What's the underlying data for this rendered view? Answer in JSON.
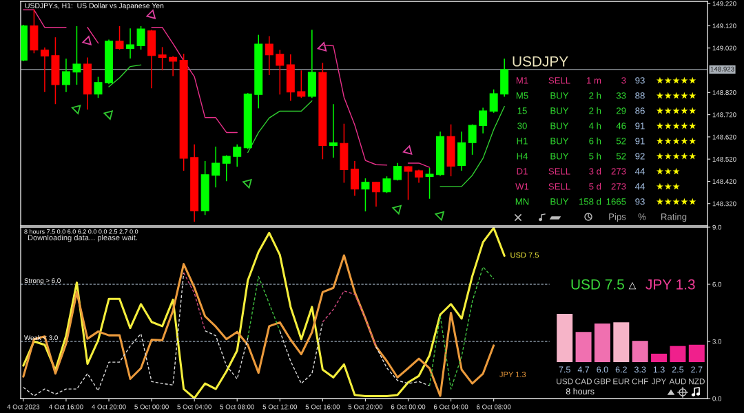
{
  "chart_data": [
    {
      "type": "candlestick",
      "title": "USDJPY.s, H1:  US Dollar vs Japanese Yen",
      "x": [
        "2023-10-04T12:00",
        "2023-10-04T13:00",
        "2023-10-04T14:00",
        "2023-10-04T15:00",
        "2023-10-04T16:00",
        "2023-10-04T17:00",
        "2023-10-04T18:00",
        "2023-10-04T19:00",
        "2023-10-04T20:00",
        "2023-10-04T21:00",
        "2023-10-04T22:00",
        "2023-10-04T23:00",
        "2023-10-05T00:00",
        "2023-10-05T01:00",
        "2023-10-05T02:00",
        "2023-10-05T03:00",
        "2023-10-05T04:00",
        "2023-10-05T05:00",
        "2023-10-05T06:00",
        "2023-10-05T07:00",
        "2023-10-05T08:00",
        "2023-10-05T09:00",
        "2023-10-05T10:00",
        "2023-10-05T11:00",
        "2023-10-05T12:00",
        "2023-10-05T13:00",
        "2023-10-05T14:00",
        "2023-10-05T15:00",
        "2023-10-05T16:00",
        "2023-10-05T17:00",
        "2023-10-05T18:00",
        "2023-10-05T19:00",
        "2023-10-05T20:00",
        "2023-10-05T21:00",
        "2023-10-05T22:00",
        "2023-10-05T23:00",
        "2023-10-06T00:00",
        "2023-10-06T01:00",
        "2023-10-06T02:00",
        "2023-10-06T03:00",
        "2023-10-06T04:00",
        "2023-10-06T05:00",
        "2023-10-06T06:00",
        "2023-10-06T07:00",
        "2023-10-06T08:00",
        "2023-10-06T09:00"
      ],
      "ohlc": [
        [
          148.965,
          149.122,
          148.963,
          149.12
        ],
        [
          149.12,
          149.192,
          148.999,
          149.011
        ],
        [
          149.011,
          149.02,
          148.824,
          148.984
        ],
        [
          148.986,
          149.066,
          148.77,
          148.855
        ],
        [
          148.855,
          148.97,
          148.824,
          148.914
        ],
        [
          148.912,
          149.116,
          148.857,
          148.948
        ],
        [
          148.948,
          148.975,
          148.745,
          148.813
        ],
        [
          148.813,
          148.888,
          148.798,
          148.865
        ],
        [
          148.863,
          149.056,
          148.86,
          149.051
        ],
        [
          149.051,
          149.116,
          149.015,
          149.018
        ],
        [
          149.018,
          149.106,
          148.975,
          149.035
        ],
        [
          149.03,
          149.116,
          149.015,
          149.106
        ],
        [
          149.097,
          149.1,
          148.841,
          148.986
        ],
        [
          148.989,
          149.022,
          148.922,
          148.978
        ],
        [
          148.978,
          148.981,
          148.896,
          148.961
        ],
        [
          148.965,
          148.992,
          148.47,
          148.524
        ],
        [
          148.527,
          148.584,
          148.24,
          148.287
        ],
        [
          148.287,
          148.509,
          148.271,
          148.45
        ],
        [
          148.447,
          148.574,
          148.395,
          148.502
        ],
        [
          148.501,
          148.535,
          148.423,
          148.533
        ],
        [
          148.532,
          148.584,
          148.488,
          148.574
        ],
        [
          148.571,
          148.815,
          148.568,
          148.813
        ],
        [
          148.811,
          149.077,
          148.751,
          149.038
        ],
        [
          149.038,
          149.071,
          148.901,
          148.989
        ],
        [
          148.992,
          149.009,
          148.813,
          148.942
        ],
        [
          148.945,
          148.989,
          148.785,
          148.822
        ],
        [
          148.824,
          148.917,
          148.798,
          148.803
        ],
        [
          148.803,
          149.1,
          148.798,
          148.911
        ],
        [
          148.91,
          148.951,
          148.522,
          148.581
        ],
        [
          148.581,
          148.765,
          148.529,
          148.594
        ],
        [
          148.591,
          148.677,
          148.416,
          148.473
        ],
        [
          148.475,
          148.509,
          148.357,
          148.385
        ],
        [
          148.385,
          148.431,
          148.287,
          148.416
        ],
        [
          148.416,
          148.416,
          148.308,
          148.373
        ],
        [
          148.373,
          148.44,
          148.37,
          148.431
        ],
        [
          148.428,
          148.5,
          148.426,
          148.488
        ],
        [
          148.486,
          148.486,
          148.339,
          148.465
        ],
        [
          148.468,
          148.47,
          148.416,
          148.439
        ],
        [
          148.442,
          148.478,
          148.344,
          148.452
        ],
        [
          148.45,
          148.641,
          148.447,
          148.622
        ],
        [
          148.622,
          148.674,
          148.445,
          148.488
        ],
        [
          148.491,
          148.641,
          148.47,
          148.594
        ],
        [
          148.594,
          148.674,
          148.542,
          148.672
        ],
        [
          148.671,
          148.749,
          148.638,
          148.737
        ],
        [
          148.735,
          148.831,
          148.731,
          148.815
        ],
        [
          148.813,
          148.97,
          148.803,
          148.923
        ]
      ],
      "colors": [
        "#00ff00",
        "#ff0000",
        "#ff0000",
        "#ff0000",
        "#00ff00",
        "#00ff00",
        "#ff0000",
        "#00ff00",
        "#00ff00",
        "#ff0000",
        "#00ff00",
        "#00ff00",
        "#ff0000",
        "#ff0000",
        "#ff0000",
        "#ff0000",
        "#ff0000",
        "#00ff00",
        "#00ff00",
        "#00ff00",
        "#00ff00",
        "#00ff00",
        "#00ff00",
        "#ff0000",
        "#ff0000",
        "#ff0000",
        "#ff0000",
        "#00ff00",
        "#ff0000",
        "#00ff00",
        "#ff0000",
        "#ff0000",
        "#00ff00",
        "#ff0000",
        "#00ff00",
        "#00ff00",
        "#ff0000",
        "#ff0000",
        "#00ff00",
        "#00ff00",
        "#ff0000",
        "#00ff00",
        "#00ff00",
        "#00ff00",
        "#00ff00",
        "#00ff00"
      ],
      "xlim": [
        "2023-10-04T11:45",
        "2023-10-07T04:00"
      ],
      "ylim": [
        148.22,
        149.23
      ],
      "yticks": [
        {
          "value": 149.22,
          "label": "149.220"
        },
        {
          "value": 149.12,
          "label": "149.120"
        },
        {
          "value": 149.02,
          "label": "149.020"
        },
        {
          "value": 148.82,
          "label": "148.820"
        },
        {
          "value": 148.72,
          "label": "148.720"
        },
        {
          "value": 148.62,
          "label": "148.620"
        },
        {
          "value": 148.52,
          "label": "148.520"
        },
        {
          "value": 148.42,
          "label": "148.420"
        },
        {
          "value": 148.32,
          "label": "148.320"
        }
      ],
      "tick_labels": "y",
      "ref_lines": [
        {
          "axis": "y",
          "value": 148.923,
          "label": "148.923",
          "color": "#a9b0b8"
        }
      ],
      "series": [
        {
          "type": "line",
          "color": "#e8308a",
          "values": [
            149.192,
            149.192,
            149.113,
            149.113,
            149.113,
            null,
            149.113,
            149.042,
            null,
            null,
            null,
            null,
            149.113,
            149.113,
            149.04,
            148.963,
            148.891,
            148.707,
            148.707,
            148.64,
            148.64,
            null,
            null,
            null,
            null,
            null,
            null,
            null,
            149.033,
            149.03,
            148.798,
            148.674,
            148.514,
            148.495,
            148.493,
            null,
            148.502,
            148.502,
            148.483,
            null,
            null,
            null,
            null,
            null,
            null,
            null
          ]
        },
        {
          "type": "line",
          "color": "#30d030",
          "values": [
            null,
            null,
            null,
            null,
            null,
            null,
            null,
            null,
            148.846,
            148.886,
            148.937,
            148.944,
            null,
            null,
            null,
            null,
            null,
            null,
            null,
            null,
            null,
            148.55,
            148.64,
            148.705,
            148.736,
            148.736,
            148.736,
            148.782,
            null,
            null,
            null,
            null,
            null,
            null,
            null,
            null,
            null,
            null,
            null,
            148.397,
            148.397,
            148.397,
            148.447,
            148.524,
            148.653,
            148.757
          ]
        },
        {
          "type": "scatter",
          "color": "#e040a0",
          "marker": "triangle",
          "x": [
            "2023-10-04T18:00",
            "2023-10-05T00:00",
            "2023-10-05T16:00",
            "2023-10-06T00:00"
          ],
          "values": [
            149.051,
            149.169,
            149.023,
            148.558
          ]
        },
        {
          "type": "scatter",
          "color": "#30c830",
          "marker": "triangle",
          "x": [
            "2023-10-04T17:00",
            "2023-10-04T20:00",
            "2023-10-05T09:00",
            "2023-10-05T23:00",
            "2023-10-06T03:00"
          ],
          "values": [
            148.746,
            148.721,
            148.412,
            148.295,
            148.267
          ]
        }
      ]
    },
    {
      "type": "other",
      "title": "USDJPY",
      "categories": [
        "M1",
        "M5",
        "15",
        "30",
        "H1",
        "H4",
        "D1",
        "W1",
        "MN"
      ],
      "colors": [
        "#e03080",
        "#30d830",
        "#30d830",
        "#30d830",
        "#30d830",
        "#30d830",
        "#e03080",
        "#e03080",
        "#30d830"
      ],
      "data_labels": true,
      "annotations": [
        "SELL",
        "1 m",
        "★★★★★",
        "BUY",
        "2 h",
        "★★★★★",
        "BUY",
        "2 h",
        "★★★★★",
        "BUY",
        "4 h",
        "★★★★★",
        "BUY",
        "6 h",
        "★★★★★",
        "BUY",
        "5 h",
        "★★★★★",
        "SELL",
        "3 d",
        "★★★",
        "SELL",
        "5 d",
        "★★★",
        "BUY",
        "158 d",
        "★★★★★",
        "Pips",
        "%",
        "Rating"
      ],
      "series": [
        {
          "values": [
            3,
            33,
            29,
            46,
            52,
            52,
            273,
            273,
            1665
          ]
        },
        {
          "values": [
            93,
            88,
            86,
            91,
            91,
            92,
            44,
            44,
            93
          ]
        }
      ]
    },
    {
      "type": "line",
      "title": "8 hours 7.5 0.0 6.0 6.2 0.0 0.0 2.5 2.7 0.0",
      "x": [
        "2023-10-04T12:00",
        "2023-10-04T13:00",
        "2023-10-04T14:00",
        "2023-10-04T15:00",
        "2023-10-04T16:00",
        "2023-10-04T17:00",
        "2023-10-04T18:00",
        "2023-10-04T19:00",
        "2023-10-04T20:00",
        "2023-10-04T21:00",
        "2023-10-04T22:00",
        "2023-10-04T23:00",
        "2023-10-05T00:00",
        "2023-10-05T01:00",
        "2023-10-05T02:00",
        "2023-10-05T03:00",
        "2023-10-05T04:00",
        "2023-10-05T05:00",
        "2023-10-05T06:00",
        "2023-10-05T07:00",
        "2023-10-05T08:00",
        "2023-10-05T09:00",
        "2023-10-05T10:00",
        "2023-10-05T11:00",
        "2023-10-05T12:00",
        "2023-10-05T13:00",
        "2023-10-05T14:00",
        "2023-10-05T15:00",
        "2023-10-05T16:00",
        "2023-10-05T17:00",
        "2023-10-05T18:00",
        "2023-10-05T19:00",
        "2023-10-05T20:00",
        "2023-10-05T21:00",
        "2023-10-05T22:00",
        "2023-10-05T23:00",
        "2023-10-06T00:00",
        "2023-10-06T01:00",
        "2023-10-06T02:00",
        "2023-10-06T03:00",
        "2023-10-06T04:00",
        "2023-10-06T05:00",
        "2023-10-06T06:00",
        "2023-10-06T07:00",
        "2023-10-06T08:00",
        "2023-10-06T09:00"
      ],
      "xlim": [
        "2023-10-04T11:45",
        "2023-10-07T04:00"
      ],
      "ylim": [
        0,
        9
      ],
      "xticks": [
        {
          "value": "2023-10-04T12:00",
          "label": "4 Oct 2023"
        },
        {
          "value": "2023-10-04T16:00",
          "label": "4 Oct 16:00"
        },
        {
          "value": "2023-10-04T20:00",
          "label": "4 Oct 20:00"
        },
        {
          "value": "2023-10-05T00:00",
          "label": "5 Oct 00:00"
        },
        {
          "value": "2023-10-05T04:00",
          "label": "5 Oct 04:00"
        },
        {
          "value": "2023-10-05T08:00",
          "label": "5 Oct 08:00"
        },
        {
          "value": "2023-10-05T12:00",
          "label": "5 Oct 12:00"
        },
        {
          "value": "2023-10-05T16:00",
          "label": "5 Oct 16:00"
        },
        {
          "value": "2023-10-05T20:00",
          "label": "5 Oct 20:00"
        },
        {
          "value": "2023-10-06T00:00",
          "label": "6 Oct 00:00"
        },
        {
          "value": "2023-10-06T04:00",
          "label": "6 Oct 04:00"
        },
        {
          "value": "2023-10-06T08:00",
          "label": "6 Oct 08:00"
        }
      ],
      "yticks": [
        {
          "value": 0,
          "label": "0.0"
        },
        {
          "value": 3,
          "label": "3.0"
        },
        {
          "value": 6,
          "label": "6.0"
        },
        {
          "value": 9,
          "label": "9.0"
        }
      ],
      "series": [
        {
          "color": "#f4ee3c",
          "values": [
            1.73,
            3.0,
            2.82,
            1.49,
            3.3,
            6.09,
            1.82,
            3.06,
            5.23,
            5.23,
            3.7,
            4.96,
            4.02,
            3.8,
            5.19,
            0.5,
            0.02,
            0.79,
            0.5,
            1.43,
            2.52,
            6.21,
            7.7,
            8.7,
            7.54,
            4.81,
            3.12,
            4.81,
            1.52,
            1.11,
            1.79,
            0.19,
            0.13,
            0.13,
            0.13,
            0.19,
            0.85,
            1.19,
            2.27,
            4.41,
            4.96,
            4.2,
            6.43,
            8.21,
            8.96,
            7.5
          ]
        },
        {
          "color": "#eb9a3c",
          "values": [
            1.15,
            3.12,
            3.26,
            1.31,
            2.88,
            5.59,
            3.14,
            3.52,
            3.32,
            3.32,
            1.03,
            1.59,
            3.09,
            3.06,
            4.62,
            7.06,
            5.83,
            4.32,
            3.78,
            3.12,
            3.5,
            2.82,
            1.35,
            3.8,
            4.0,
            3.09,
            2.33,
            3.48,
            5.59,
            5.81,
            7.52,
            5.59,
            4.2,
            2.72,
            1.97,
            1.11,
            1.59,
            2.09,
            1.59,
            0.14,
            4.5,
            1.52,
            0.79,
            1.31,
            2.79,
            null
          ]
        },
        {
          "color": "#dcdcdc",
          "line_style": "dashed",
          "values": [
            0.59,
            0.14,
            0.5,
            0.23,
            0.5,
            0.5,
            1.31,
            0.41,
            1.91,
            1.91,
            2.76,
            3.4,
            0.89,
            0.79,
            0.71,
            6.61,
            null,
            3.56,
            3.3,
            1.73,
            1.03,
            3.18,
            null,
            null,
            3.54,
            1.97,
            0.79,
            1.31,
            4.02,
            null,
            null,
            null,
            null,
            2.72,
            1.61,
            0.95,
            0.79,
            0.89,
            0.67,
            null,
            null,
            null,
            null,
            null,
            null,
            null
          ]
        },
        {
          "color": "#d04880",
          "line_style": "dashed",
          "values": [
            null,
            null,
            null,
            null,
            null,
            null,
            null,
            null,
            null,
            null,
            null,
            null,
            null,
            null,
            null,
            6.61,
            5.53,
            3.56,
            null,
            null,
            null,
            null,
            null,
            null,
            null,
            null,
            null,
            null,
            4.02,
            4.68,
            5.65,
            5.47,
            4.2,
            2.72,
            null,
            null,
            null,
            null,
            null,
            null,
            null,
            null,
            null,
            null,
            null,
            null
          ]
        },
        {
          "color": "#40c040",
          "line_style": "dashed",
          "values": [
            null,
            null,
            null,
            null,
            null,
            null,
            null,
            null,
            null,
            null,
            null,
            null,
            null,
            null,
            null,
            null,
            null,
            null,
            null,
            null,
            null,
            3.18,
            6.41,
            4.99,
            3.54,
            null,
            null,
            null,
            null,
            null,
            null,
            null,
            null,
            null,
            null,
            null,
            null,
            null,
            0.67,
            4.36,
            0.5,
            2.21,
            5.1,
            6.91,
            6.29,
            null
          ]
        }
      ],
      "ref_lines": [
        {
          "axis": "y",
          "value": 6.0,
          "label": "Strong > 6.0",
          "color": "#c8dcf0",
          "line_style": "dashed"
        },
        {
          "axis": "y",
          "value": 3.0,
          "label": "Weak < 3.0",
          "color": "#c8dcf0",
          "line_style": "dashed"
        }
      ],
      "annotations": [
        {
          "text": "USD 7.5",
          "x": "2023-10-06T09:00",
          "y": 7.5
        },
        "JPY 1.3",
        "Downloading data... please wait."
      ]
    },
    {
      "type": "bar",
      "categories": [
        "USD",
        "CAD",
        "GBP",
        "EUR",
        "CHF",
        "JPY",
        "AUD",
        "NZD"
      ],
      "values": [
        7.5,
        4.7,
        6.0,
        6.2,
        3.3,
        1.3,
        2.5,
        2.7
      ],
      "value_labels": [
        "7.5",
        "4.7",
        "6.0",
        "6.2",
        "3.3",
        "1.3",
        "2.5",
        "2.7"
      ],
      "colors": [
        "#f6b4c8",
        "#f070b0",
        "#f070b0",
        "#f6b4c8",
        "#f070b0",
        "#f0208c",
        "#f0208c",
        "#f0208c"
      ],
      "xlabel": "8 hours",
      "annotations": [
        "USD 7.5",
        "△",
        "JPY 1.3"
      ]
    }
  ]
}
